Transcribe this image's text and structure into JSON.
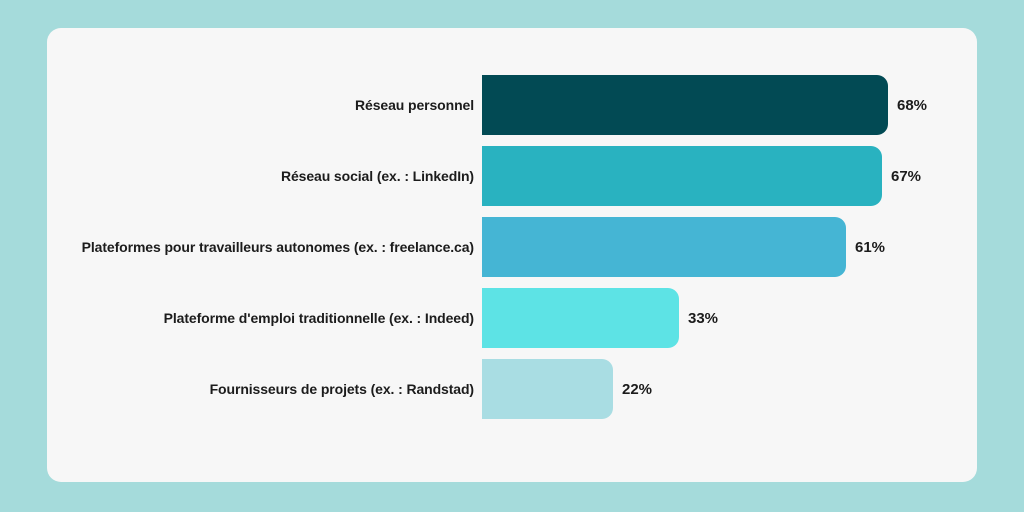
{
  "background_color": "#a5dbdb",
  "card_color": "#f7f7f7",
  "text_color": "#1c1c1c",
  "chart_data": {
    "type": "bar",
    "orientation": "horizontal",
    "title": "",
    "xlabel": "",
    "ylabel": "",
    "axis_visible": false,
    "grid": false,
    "legend": false,
    "data_labels_position": "outside-end",
    "xlim": [
      0,
      100
    ],
    "categories": [
      "Réseau personnel",
      "Réseau social (ex. : LinkedIn)",
      "Plateformes pour travailleurs autonomes (ex. : freelance.ca)",
      "Plateforme d'emploi traditionnelle (ex. : Indeed)",
      "Fournisseurs de projets (ex. : Randstad)"
    ],
    "values": [
      68,
      67,
      61,
      33,
      22
    ],
    "value_labels": [
      "68%",
      "67%",
      "61%",
      "33%",
      "22%"
    ],
    "bar_colors": [
      "#024a54",
      "#29b2c0",
      "#45b5d4",
      "#5de3e5",
      "#a9dde3"
    ]
  }
}
